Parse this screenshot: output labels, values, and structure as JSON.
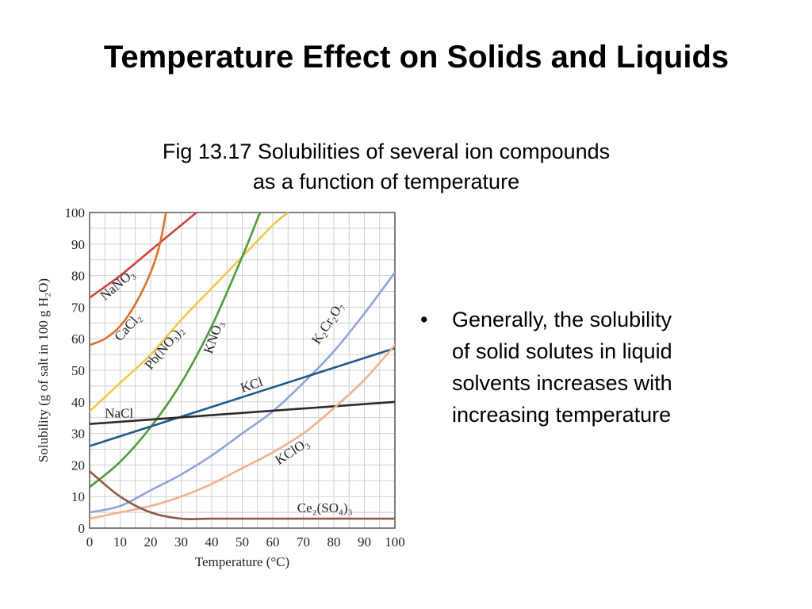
{
  "slide": {
    "title": "Temperature Effect on Solids and Liquids",
    "caption_line1": "Fig 13.17  Solubilities of several ion compounds",
    "caption_line2": "as a function of temperature",
    "bullet_symbol": "•",
    "bullet_lines": [
      "Generally, the solubility",
      "of solid solutes in liquid",
      "solvents increases with",
      "increasing temperature"
    ]
  },
  "chart_data": {
    "type": "line",
    "xlabel": "Temperature (°C)",
    "ylabel": "Solubility (g of salt in 100 g H₂O)",
    "xlim": [
      0,
      100
    ],
    "ylim": [
      0,
      100
    ],
    "xticks": [
      0,
      10,
      20,
      30,
      40,
      50,
      60,
      70,
      80,
      90,
      100
    ],
    "yticks": [
      0,
      10,
      20,
      30,
      40,
      50,
      60,
      70,
      80,
      90,
      100
    ],
    "grid": true,
    "series": [
      {
        "name": "NaNO₃",
        "color": "#d1403f",
        "points": [
          [
            0,
            73
          ],
          [
            10,
            80
          ],
          [
            20,
            88
          ],
          [
            30,
            96
          ],
          [
            35,
            100
          ]
        ]
      },
      {
        "name": "CaCl₂",
        "color": "#d9722e",
        "points": [
          [
            0,
            58
          ],
          [
            5,
            60
          ],
          [
            10,
            64
          ],
          [
            15,
            71
          ],
          [
            20,
            81
          ],
          [
            23,
            90
          ],
          [
            25,
            100
          ]
        ]
      },
      {
        "name": "Pb(NO₃)₂",
        "color": "#f2c84b",
        "points": [
          [
            0,
            37
          ],
          [
            10,
            46
          ],
          [
            20,
            55
          ],
          [
            30,
            66
          ],
          [
            40,
            76
          ],
          [
            50,
            86
          ],
          [
            60,
            96
          ],
          [
            65,
            100
          ]
        ]
      },
      {
        "name": "KNO₃",
        "color": "#4f9a3d",
        "points": [
          [
            0,
            13
          ],
          [
            10,
            21
          ],
          [
            20,
            32
          ],
          [
            30,
            46
          ],
          [
            40,
            64
          ],
          [
            50,
            86
          ],
          [
            55,
            98
          ],
          [
            56,
            100
          ]
        ]
      },
      {
        "name": "K₂Cr₂O₇",
        "color": "#8fa3dc",
        "points": [
          [
            0,
            5
          ],
          [
            10,
            7
          ],
          [
            20,
            12
          ],
          [
            30,
            17
          ],
          [
            40,
            23
          ],
          [
            50,
            30
          ],
          [
            60,
            37
          ],
          [
            70,
            46
          ],
          [
            80,
            56
          ],
          [
            90,
            68
          ],
          [
            100,
            81
          ]
        ]
      },
      {
        "name": "KCl",
        "color": "#1f5a8a",
        "points": [
          [
            0,
            26
          ],
          [
            100,
            57
          ]
        ]
      },
      {
        "name": "NaCl",
        "color": "#2b2b2b",
        "points": [
          [
            0,
            33
          ],
          [
            100,
            40
          ]
        ]
      },
      {
        "name": "KClO₃",
        "color": "#f2b08e",
        "points": [
          [
            0,
            3
          ],
          [
            10,
            5
          ],
          [
            20,
            7
          ],
          [
            30,
            10
          ],
          [
            40,
            14
          ],
          [
            50,
            19
          ],
          [
            60,
            24
          ],
          [
            70,
            30
          ],
          [
            80,
            38
          ],
          [
            90,
            47
          ],
          [
            100,
            58
          ]
        ]
      },
      {
        "name": "Ce₂(SO₄)₃",
        "color": "#8a5a44",
        "points": [
          [
            0,
            18
          ],
          [
            10,
            10
          ],
          [
            20,
            5
          ],
          [
            30,
            3
          ],
          [
            40,
            3
          ],
          [
            60,
            3
          ],
          [
            100,
            3
          ]
        ]
      }
    ]
  }
}
